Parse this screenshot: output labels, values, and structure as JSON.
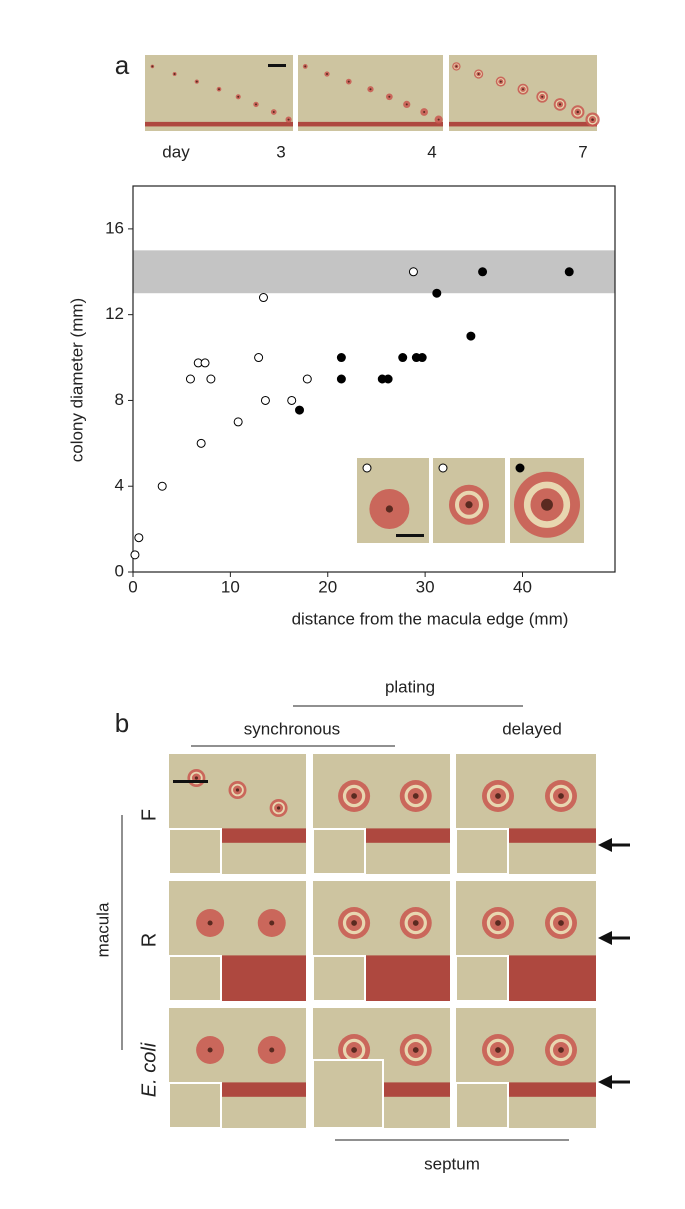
{
  "panel_a": {
    "label": "a",
    "strip": {
      "day_label": "day",
      "days": [
        "3",
        "4",
        "7"
      ]
    }
  },
  "chart_data": {
    "type": "scatter",
    "x_label": "distance from the macula edge (mm)",
    "y_label": "colony diameter (mm)",
    "xlim": [
      0,
      49.5
    ],
    "ylim": [
      0,
      18
    ],
    "xticks": [
      0,
      10,
      20,
      30,
      40
    ],
    "yticks": [
      0,
      4,
      8,
      12,
      16
    ],
    "band": [
      13,
      15
    ],
    "band_color": "#c4c4c4",
    "series": [
      {
        "color": "#ffffff",
        "x": [
          0.2,
          0.6,
          3.0,
          5.9,
          6.7,
          7.4,
          7.0,
          8.0,
          10.8,
          12.9,
          13.4,
          13.6,
          16.3,
          17.9,
          28.8
        ],
        "values": [
          0.8,
          1.6,
          4.0,
          9.0,
          9.75,
          9.75,
          6.0,
          9.0,
          7.0,
          10.0,
          12.8,
          8.0,
          8.0,
          9.0,
          14.0
        ]
      },
      {
        "color": "#000000",
        "x": [
          17.1,
          21.4,
          21.4,
          25.6,
          26.2,
          27.7,
          29.1,
          29.7,
          31.2,
          34.7,
          35.9,
          44.8
        ],
        "values": [
          7.55,
          10.0,
          9.0,
          9.0,
          9.0,
          10.0,
          10.0,
          10.0,
          13.0,
          11.0,
          14.0,
          14.0
        ]
      }
    ]
  },
  "panel_b": {
    "label": "b",
    "plating": "plating",
    "columns": [
      "synchronous",
      "delayed"
    ],
    "group": "macula",
    "rows": [
      "F",
      "R",
      "E. coli"
    ],
    "bottom": "septum"
  }
}
